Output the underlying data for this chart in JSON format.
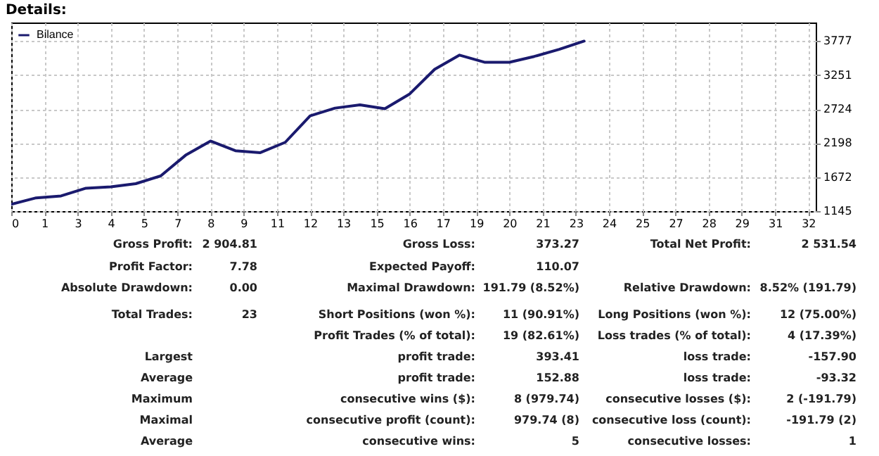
{
  "chart_data": [
    {
      "type": "line",
      "title": "Details:",
      "x": [
        0,
        1,
        2,
        3,
        4,
        5,
        6,
        7,
        8,
        9,
        10,
        11,
        12,
        13,
        14,
        15,
        16,
        17,
        18,
        19,
        20,
        21,
        22,
        23
      ],
      "series": [
        {
          "name": "Bilance",
          "color": "#1a1a6e",
          "values": [
            1250,
            1350,
            1380,
            1500,
            1520,
            1570,
            1690,
            2010,
            2230,
            2080,
            2050,
            2210,
            2620,
            2740,
            2790,
            2730,
            2960,
            3340,
            3560,
            3450,
            3450,
            3540,
            3650,
            3777
          ]
        }
      ],
      "xlim": [
        0,
        32.3
      ],
      "xticks": [
        0,
        {
          "value": 1.33,
          "label": "1"
        },
        {
          "value": 2.67,
          "label": "3"
        },
        4,
        {
          "value": 5.33,
          "label": "5"
        },
        {
          "value": 6.67,
          "label": "7"
        },
        8,
        {
          "value": 9.33,
          "label": "9"
        },
        {
          "value": 10.67,
          "label": "11"
        },
        12,
        {
          "value": 13.33,
          "label": "13"
        },
        {
          "value": 14.67,
          "label": "15"
        },
        16,
        {
          "value": 17.33,
          "label": "17"
        },
        {
          "value": 18.67,
          "label": "19"
        },
        20,
        {
          "value": 21.33,
          "label": "21"
        },
        {
          "value": 22.67,
          "label": "23"
        },
        24,
        {
          "value": 25.33,
          "label": "25"
        },
        {
          "value": 26.67,
          "label": "27"
        },
        28,
        {
          "value": 29.33,
          "label": "29"
        },
        {
          "value": 30.67,
          "label": "31"
        },
        32
      ],
      "ylim": [
        1145,
        4065
      ],
      "yticks": [
        1145,
        1672,
        2198,
        2724,
        3251,
        3777
      ],
      "grid": true,
      "legend": "top left",
      "line_style": "solid"
    },
    {
      "type": "other",
      "annotations": [
        "Gross Profit:",
        "2 904.81",
        "Gross Loss:",
        "373.27",
        "Total Net Profit:",
        "2 531.54",
        "Profit Factor:",
        "7.78",
        "Expected Payoff:",
        "110.07",
        "Absolute Drawdown:",
        "0.00",
        "Maximal Drawdown:",
        "191.79 (8.52%)",
        "Relative Drawdown:",
        "8.52% (191.79)",
        "Total Trades:",
        "23",
        "Short Positions (won %):",
        "11 (90.91%)",
        "Long Positions (won %):",
        "12 (75.00%)",
        "Profit Trades (% of total):",
        "19 (82.61%)",
        "Loss trades (% of total):",
        "4 (17.39%)",
        "Largest",
        "profit trade:",
        "393.41",
        "loss trade:",
        "-157.90",
        "Average",
        "profit trade:",
        "152.88",
        "loss trade:",
        "-93.32",
        "Maximum",
        "consecutive wins ($):",
        "8 (979.74)",
        "consecutive losses ($):",
        "2 (-191.79)",
        "Maximal",
        "consecutive profit (count):",
        "979.74 (8)",
        "consecutive loss (count):",
        "-191.79 (2)",
        "Average",
        "consecutive wins:",
        "5",
        "consecutive losses:",
        "1"
      ]
    }
  ]
}
